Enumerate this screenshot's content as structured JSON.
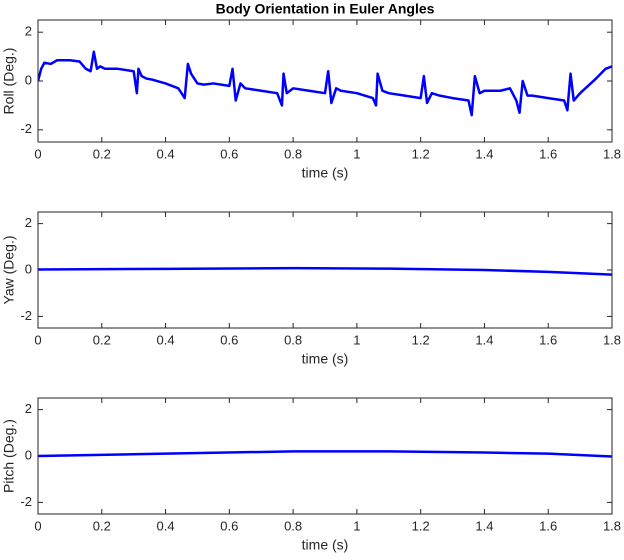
{
  "chart_data": [
    {
      "type": "line",
      "title": "Body Orientation in Euler Angles",
      "xlabel": "time (s)",
      "ylabel": "Roll (Deg.)",
      "xlim": [
        0,
        1.8
      ],
      "xticks": [
        0,
        0.2,
        0.4,
        0.6,
        0.8,
        1,
        1.2,
        1.4,
        1.6,
        1.8
      ],
      "ylim": [
        -2.5,
        2.5
      ],
      "yticks": [
        -2,
        0,
        2
      ],
      "x": [
        0,
        0.01,
        0.02,
        0.04,
        0.06,
        0.1,
        0.13,
        0.15,
        0.165,
        0.175,
        0.185,
        0.195,
        0.21,
        0.25,
        0.3,
        0.31,
        0.315,
        0.325,
        0.34,
        0.36,
        0.4,
        0.44,
        0.46,
        0.47,
        0.48,
        0.5,
        0.52,
        0.55,
        0.6,
        0.61,
        0.62,
        0.635,
        0.65,
        0.7,
        0.75,
        0.765,
        0.77,
        0.78,
        0.8,
        0.85,
        0.9,
        0.91,
        0.92,
        0.935,
        0.95,
        1.0,
        1.05,
        1.06,
        1.065,
        1.08,
        1.1,
        1.15,
        1.2,
        1.21,
        1.22,
        1.235,
        1.26,
        1.3,
        1.35,
        1.36,
        1.37,
        1.385,
        1.4,
        1.45,
        1.48,
        1.5,
        1.51,
        1.52,
        1.535,
        1.55,
        1.6,
        1.65,
        1.66,
        1.67,
        1.68,
        1.7,
        1.75,
        1.78,
        1.8
      ],
      "series": [
        {
          "color": "#0000ff",
          "values": [
            0,
            0.5,
            0.75,
            0.7,
            0.85,
            0.85,
            0.8,
            0.5,
            0.4,
            1.2,
            0.5,
            0.6,
            0.5,
            0.5,
            0.4,
            -0.5,
            0.5,
            0.2,
            0.1,
            0.05,
            -0.1,
            -0.3,
            -0.7,
            0.7,
            0.3,
            -0.1,
            -0.15,
            -0.1,
            -0.2,
            0.5,
            -0.8,
            -0.1,
            -0.3,
            -0.4,
            -0.5,
            -1.0,
            0.3,
            -0.5,
            -0.3,
            -0.4,
            -0.5,
            0.4,
            -0.9,
            -0.3,
            -0.4,
            -0.5,
            -0.7,
            -1.0,
            0.3,
            -0.4,
            -0.5,
            -0.6,
            -0.7,
            0.2,
            -0.9,
            -0.5,
            -0.6,
            -0.7,
            -0.8,
            -1.4,
            0.2,
            -0.5,
            -0.4,
            -0.4,
            -0.3,
            -0.8,
            -1.3,
            0.0,
            -0.6,
            -0.6,
            -0.7,
            -0.8,
            -1.2,
            0.3,
            -0.8,
            -0.5,
            0.1,
            0.5,
            0.6
          ]
        }
      ]
    },
    {
      "type": "line",
      "xlabel": "time (s)",
      "ylabel": "Yaw (Deg.)",
      "xlim": [
        0,
        1.8
      ],
      "xticks": [
        0,
        0.2,
        0.4,
        0.6,
        0.8,
        1,
        1.2,
        1.4,
        1.6,
        1.8
      ],
      "ylim": [
        -2.5,
        2.5
      ],
      "yticks": [
        -2,
        0,
        2
      ],
      "x": [
        0,
        0.4,
        0.8,
        1.1,
        1.4,
        1.6,
        1.8
      ],
      "series": [
        {
          "color": "#0000ff",
          "values": [
            0.02,
            0.05,
            0.08,
            0.06,
            0,
            -0.08,
            -0.2
          ]
        }
      ]
    },
    {
      "type": "line",
      "xlabel": "time (s)",
      "ylabel": "Pitch (Deg.)",
      "xlim": [
        0,
        1.8
      ],
      "xticks": [
        0,
        0.2,
        0.4,
        0.6,
        0.8,
        1,
        1.2,
        1.4,
        1.6,
        1.8
      ],
      "ylim": [
        -2.5,
        2.5
      ],
      "yticks": [
        -2,
        0,
        2
      ],
      "x": [
        0,
        0.4,
        0.8,
        1.1,
        1.4,
        1.6,
        1.8
      ],
      "series": [
        {
          "color": "#0000ff",
          "values": [
            0,
            0.1,
            0.2,
            0.2,
            0.15,
            0.1,
            -0.02
          ]
        }
      ]
    }
  ]
}
